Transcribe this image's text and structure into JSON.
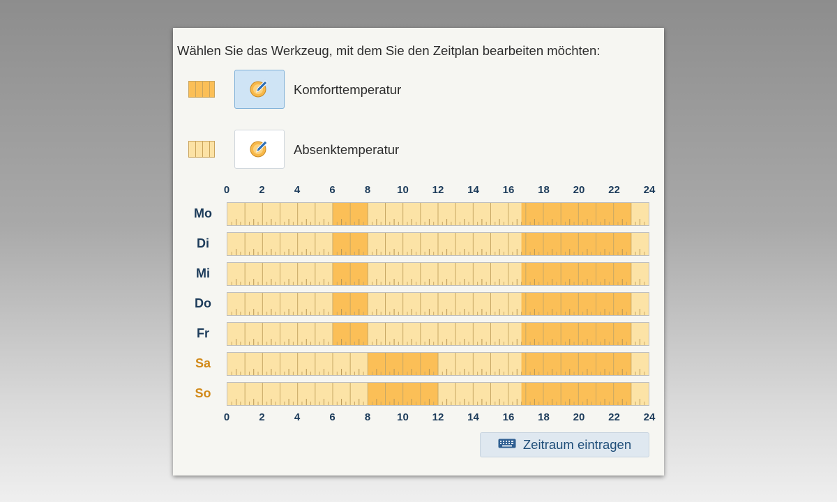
{
  "instruction": "Wählen Sie das Werkzeug, mit dem Sie den Zeitplan bearbeiten möchten:",
  "tools": [
    {
      "label": "Komforttemperatur",
      "icon": "pencil-edit-icon",
      "selected": true,
      "color": "#fbbf57"
    },
    {
      "label": "Absenktemperatur",
      "icon": "pencil-edit-icon",
      "selected": false,
      "color": "#fce2a5"
    }
  ],
  "hours_axis": [
    "0",
    "2",
    "4",
    "6",
    "8",
    "10",
    "12",
    "14",
    "16",
    "18",
    "20",
    "22",
    "24"
  ],
  "schedule": [
    {
      "day": "Mo",
      "weekend": false,
      "comfort": [
        [
          6,
          8
        ],
        [
          16.75,
          23
        ]
      ]
    },
    {
      "day": "Di",
      "weekend": false,
      "comfort": [
        [
          6,
          8
        ],
        [
          16.75,
          23
        ]
      ]
    },
    {
      "day": "Mi",
      "weekend": false,
      "comfort": [
        [
          6,
          8
        ],
        [
          16.75,
          23
        ]
      ]
    },
    {
      "day": "Do",
      "weekend": false,
      "comfort": [
        [
          6,
          8
        ],
        [
          16.75,
          23
        ]
      ]
    },
    {
      "day": "Fr",
      "weekend": false,
      "comfort": [
        [
          6,
          8
        ],
        [
          16.75,
          23
        ]
      ]
    },
    {
      "day": "Sa",
      "weekend": true,
      "comfort": [
        [
          8,
          12
        ],
        [
          16.75,
          23
        ]
      ]
    },
    {
      "day": "So",
      "weekend": true,
      "comfort": [
        [
          8,
          12
        ],
        [
          16.75,
          23
        ]
      ]
    }
  ],
  "colors": {
    "comfort": "#fbbf57",
    "reduced": "#fce3a6",
    "day_label": "#1c3b5a",
    "weekend_label": "#d28a1a"
  },
  "entry_button": {
    "label": "Zeitraum eintragen",
    "icon": "keyboard-icon"
  }
}
